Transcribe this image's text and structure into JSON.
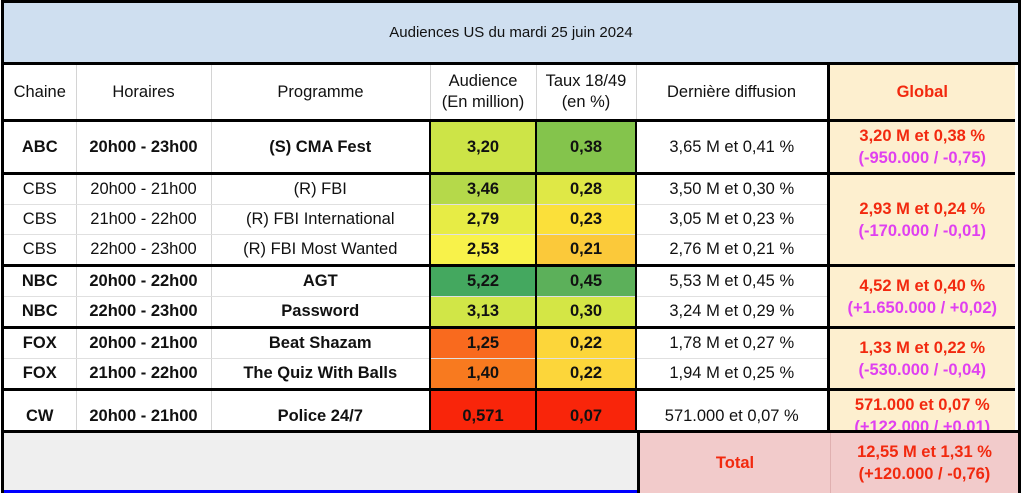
{
  "title": "Audiences US du mardi 25 juin 2024",
  "headers": {
    "chaine": "Chaine",
    "horaires": "Horaires",
    "programme": "Programme",
    "audience_line1": "Audience",
    "audience_line2": "(En million)",
    "taux_line1": "Taux 18/49",
    "taux_line2": "(en %)",
    "derniere": "Dernière diffusion",
    "global": "Global"
  },
  "colors": {
    "title_bg": "#cfdff0",
    "global_bg": "#fdefcf",
    "global_text": "#f2290f",
    "delta_text": "#e040f0",
    "total_bg": "#f2cbcb"
  },
  "rows": [
    {
      "chaine": "ABC",
      "horaires": "20h00 - 23h00",
      "programme": "(S) CMA Fest",
      "audience": "3,20",
      "taux": "0,38",
      "derniere": "3,65 M et 0,41 %",
      "bold": true,
      "audience_color": "#cde447",
      "taux_color": "#84c44c"
    },
    {
      "chaine": "CBS",
      "horaires": "20h00 - 21h00",
      "programme": "(R) FBI",
      "audience": "3,46",
      "taux": "0,28",
      "derniere": "3,50 M et 0,30 %",
      "bold": false,
      "audience_color": "#b5d94a",
      "taux_color": "#dfe846"
    },
    {
      "chaine": "CBS",
      "horaires": "21h00 - 22h00",
      "programme": "(R) FBI International",
      "audience": "2,79",
      "taux": "0,23",
      "derniere": "3,05 M et 0,23 %",
      "bold": false,
      "audience_color": "#e7ec45",
      "taux_color": "#fbe03a"
    },
    {
      "chaine": "CBS",
      "horaires": "22h00 - 23h00",
      "programme": "(R) FBI Most Wanted",
      "audience": "2,53",
      "taux": "0,21",
      "derniere": "2,76 M et 0,21 %",
      "bold": false,
      "audience_color": "#f8f24a",
      "taux_color": "#fbc93a"
    },
    {
      "chaine": "NBC",
      "horaires": "20h00 - 22h00",
      "programme": "AGT",
      "audience": "5,22",
      "taux": "0,45",
      "derniere": "5,53 M et 0,45 %",
      "bold": true,
      "audience_color": "#44a85f",
      "taux_color": "#5cb05a"
    },
    {
      "chaine": "NBC",
      "horaires": "22h00 - 23h00",
      "programme": "Password",
      "audience": "3,13",
      "taux": "0,30",
      "derniere": "3,24 M et 0,29 %",
      "bold": true,
      "audience_color": "#d1e647",
      "taux_color": "#d4e645"
    },
    {
      "chaine": "FOX",
      "horaires": "20h00 - 21h00",
      "programme": "Beat Shazam",
      "audience": "1,25",
      "taux": "0,22",
      "derniere": "1,78 M et 0,27 %",
      "bold": true,
      "audience_color": "#f96a1e",
      "taux_color": "#fcd63a"
    },
    {
      "chaine": "FOX",
      "horaires": "21h00 - 22h00",
      "programme": "The Quiz With Balls",
      "audience": "1,40",
      "taux": "0,22",
      "derniere": "1,94 M et 0,25 %",
      "bold": true,
      "audience_color": "#f87a1f",
      "taux_color": "#fcd63a"
    },
    {
      "chaine": "CW",
      "horaires": "20h00 - 21h00",
      "programme": "Police 24/7",
      "audience": "0,571",
      "taux": "0,07",
      "derniere": "571.000 et 0,07 %",
      "bold": true,
      "audience_color": "#f9250a",
      "taux_color": "#f9250a"
    }
  ],
  "globals": [
    {
      "line1": "3,20 M et 0,38 %",
      "line2": "(-950.000 / -0,75)"
    },
    {
      "line1": "2,93 M et 0,24 %",
      "line2": "(-170.000 / -0,01)"
    },
    {
      "line1": "4,52 M et 0,40 %",
      "line2": "(+1.650.000 / +0,02)"
    },
    {
      "line1": "1,33 M et 0,22 %",
      "line2": "(-530.000 / -0,04)"
    },
    {
      "line1": "571.000 et 0,07 %",
      "line2": "(+122.000 / +0,01)"
    }
  ],
  "total": {
    "label": "Total",
    "line1": "12,55 M et 1,31 %",
    "line2": "(+120.000 / -0,76)"
  }
}
